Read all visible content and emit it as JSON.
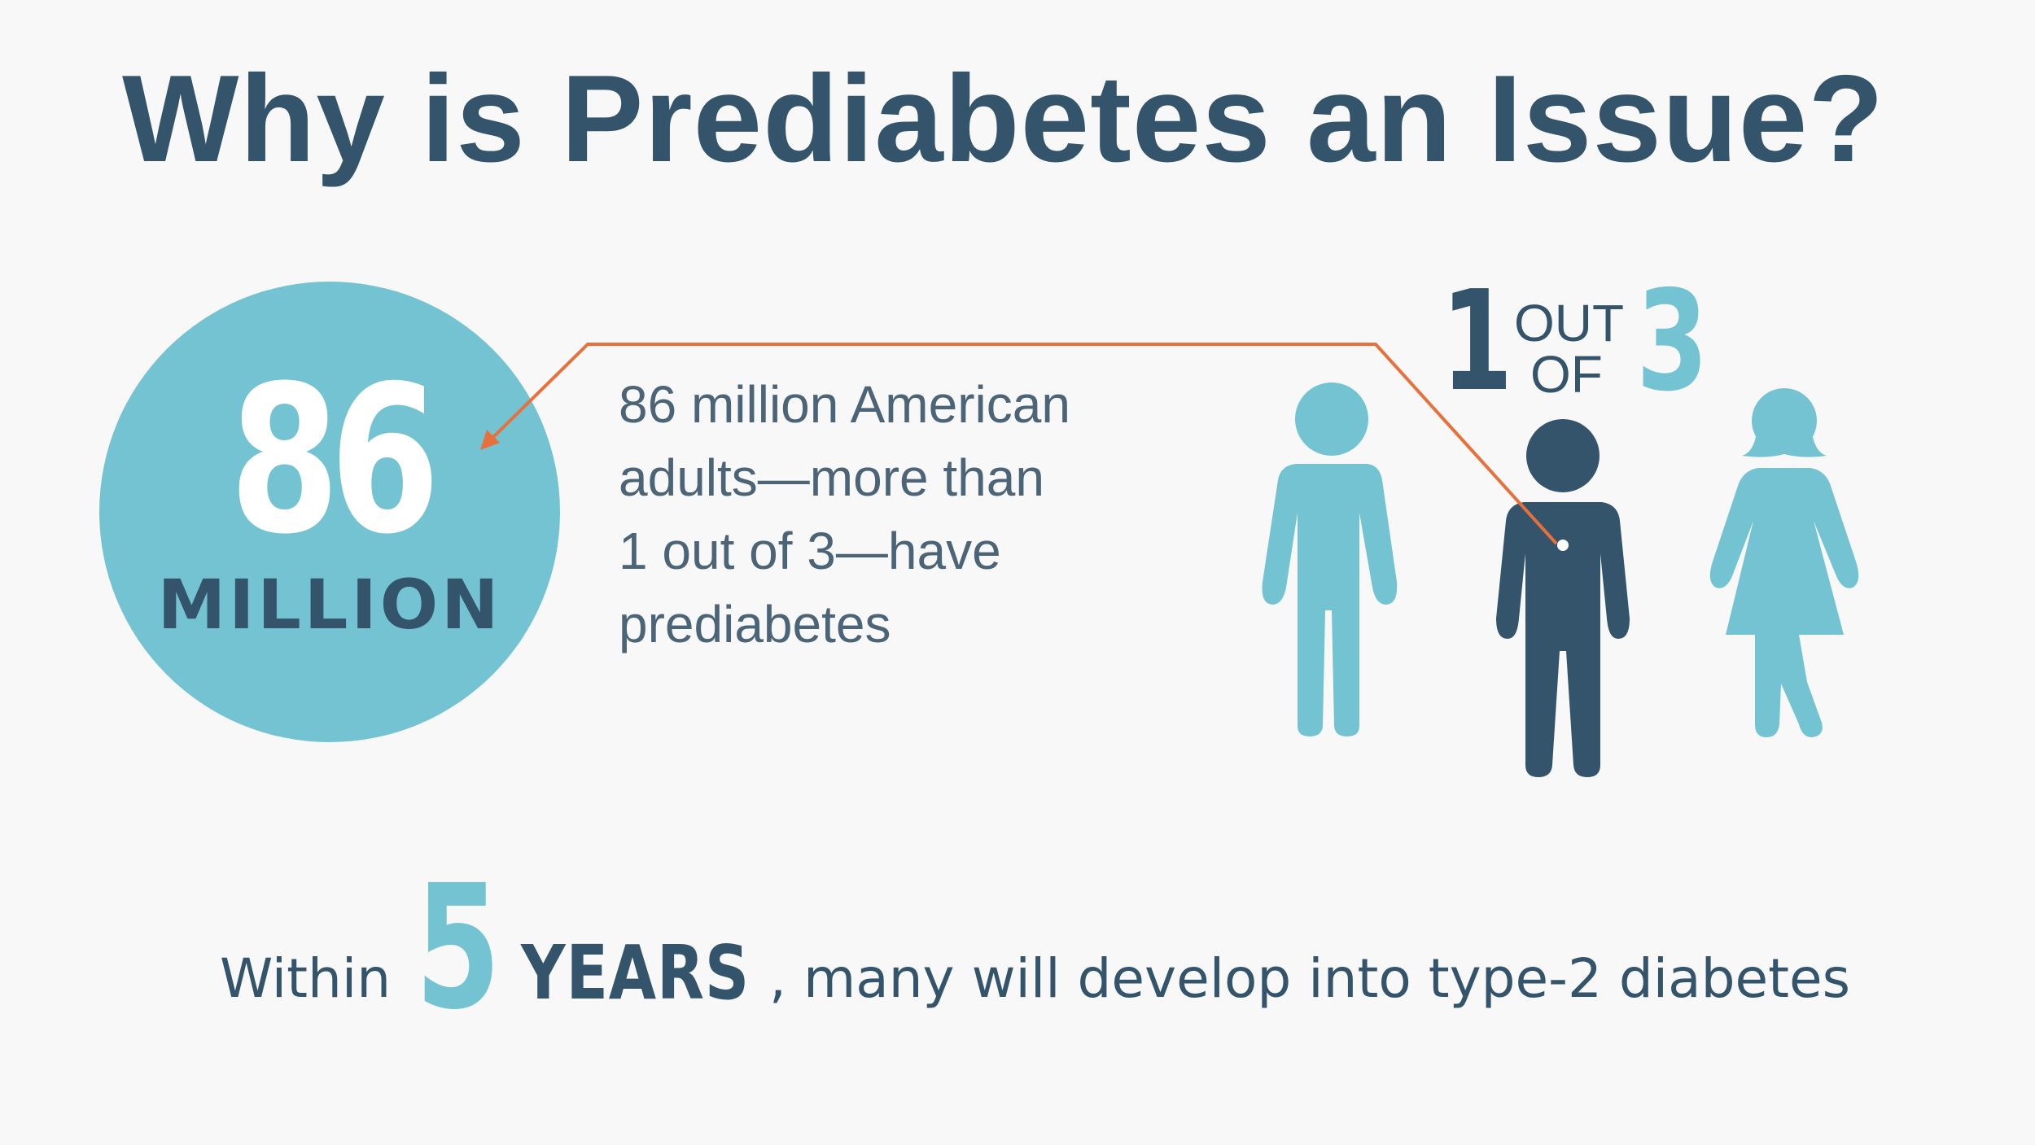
{
  "title": "Why is Prediabetes an Issue?",
  "stat": {
    "number": "86",
    "unit": "MILLION"
  },
  "description": {
    "lines": [
      "86 million American",
      "adults—more than",
      "1 out of 3—have",
      "prediabetes"
    ]
  },
  "ratio": {
    "numerator": "1",
    "out": "OUT",
    "of": "OF",
    "denominator": "3"
  },
  "bottom": {
    "prefix": "Within",
    "number": "5",
    "unit": "YEARS",
    "suffix": ", many will develop into type-2 diabetes"
  },
  "colors": {
    "background": "#f8f8f8",
    "navy": "#33546b",
    "teal": "#74c3d3",
    "accent_line": "#e8703a"
  },
  "icons": [
    "man-icon",
    "highlighted-person-icon",
    "woman-icon",
    "arrow-icon"
  ]
}
